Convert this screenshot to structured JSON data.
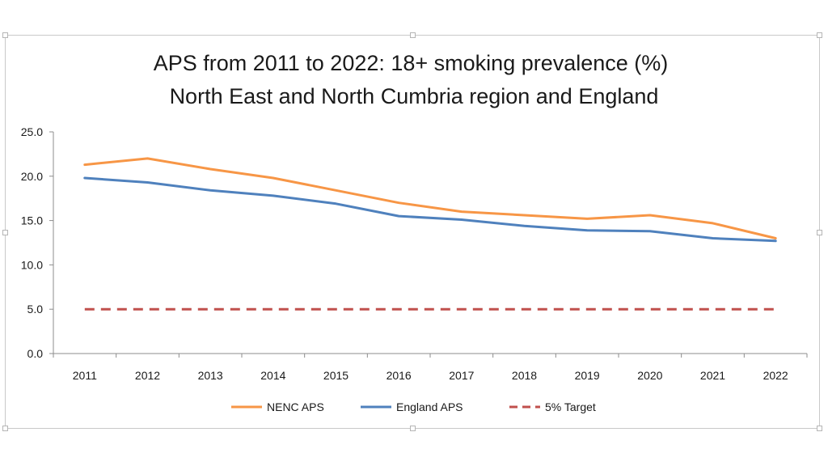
{
  "chart_data": {
    "type": "line",
    "title_lines": [
      "APS from 2011 to 2022: 18+ smoking prevalence (%)",
      "North East and North Cumbria region and England"
    ],
    "xlabel": "",
    "ylabel": "",
    "x": [
      "2011",
      "2012",
      "2013",
      "2014",
      "2015",
      "2016",
      "2017",
      "2018",
      "2019",
      "2020",
      "2021",
      "2022"
    ],
    "ylim": [
      0,
      25
    ],
    "yticks": [
      "0.0",
      "5.0",
      "10.0",
      "15.0",
      "20.0",
      "25.0"
    ],
    "grid": false,
    "legend_position": "bottom",
    "series": [
      {
        "name": "NENC APS",
        "color": "#f79646",
        "style": "solid",
        "values": [
          21.3,
          22.0,
          20.8,
          19.8,
          18.4,
          17.0,
          16.0,
          15.6,
          15.2,
          15.6,
          14.7,
          13.0
        ]
      },
      {
        "name": "England APS",
        "color": "#4f81bd",
        "style": "solid",
        "values": [
          19.8,
          19.3,
          18.4,
          17.8,
          16.9,
          15.5,
          15.1,
          14.4,
          13.9,
          13.8,
          13.0,
          12.7
        ]
      },
      {
        "name": "5% Target",
        "color": "#c0504d",
        "style": "dashed",
        "values": [
          5,
          5,
          5,
          5,
          5,
          5,
          5,
          5,
          5,
          5,
          5,
          5
        ]
      }
    ]
  }
}
